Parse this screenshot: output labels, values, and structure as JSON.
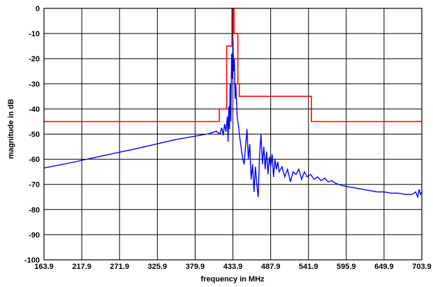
{
  "chart_data": {
    "type": "line",
    "title": "",
    "xlabel": "frequency in MHz",
    "ylabel": "magnitude in dB",
    "xlim": [
      163.9,
      703.9
    ],
    "ylim": [
      -100,
      0
    ],
    "grid": true,
    "x_ticks": [
      "163.9",
      "217.9",
      "271.9",
      "325.9",
      "379.9",
      "433.9",
      "487.9",
      "541.9",
      "595.9",
      "649.9",
      "703.9"
    ],
    "y_ticks": [
      "0",
      "-10",
      "-20",
      "-30",
      "-40",
      "-50",
      "-60",
      "-70",
      "-80",
      "-90",
      "-100"
    ],
    "series": [
      {
        "color": "#ff0000",
        "style": "step",
        "x": [
          163.9,
          414.5,
          414.5,
          425,
          425,
          432.5,
          432.5,
          435.5,
          435.5,
          441,
          441,
          443,
          443,
          449.5,
          449.5,
          469,
          469,
          479,
          479,
          487.9,
          487.9,
          546,
          546,
          703.9
        ],
        "y": [
          -45,
          -45,
          -40,
          -40,
          -15,
          -15,
          0,
          0,
          -10,
          -10,
          -30,
          -30,
          -35,
          -35,
          -35,
          -35,
          -35,
          -35,
          -35,
          -35,
          -35,
          -35,
          -45,
          -45
        ]
      },
      {
        "color": "#0000ff",
        "style": "line",
        "x": [
          163.9,
          200,
          250,
          300,
          350,
          380,
          400,
          410,
          415,
          418,
          420,
          422,
          424,
          426,
          427,
          428,
          429,
          430,
          431,
          432,
          433,
          434,
          435,
          436,
          437,
          438,
          440,
          442,
          444,
          446,
          448,
          450,
          452,
          454,
          456,
          458,
          460,
          462,
          464,
          466,
          468,
          470,
          472,
          474,
          476,
          478,
          480,
          482,
          484,
          486,
          488,
          490,
          492,
          494,
          496,
          498,
          500,
          504,
          508,
          512,
          516,
          520,
          524,
          528,
          532,
          536,
          540,
          545,
          550,
          555,
          560,
          565,
          570,
          575,
          580,
          590,
          600,
          610,
          620,
          630,
          640,
          650,
          660,
          670,
          680,
          690,
          695,
          698,
          700,
          702,
          703.9
        ],
        "y": [
          -63.5,
          -61.5,
          -58.5,
          -55.5,
          -52.3,
          -50.8,
          -49.8,
          -48.8,
          -50,
          -47.5,
          -50.5,
          -46,
          -49,
          -43,
          -53,
          -39,
          -48,
          -30,
          -45,
          -18,
          -28,
          -12,
          -25,
          -20,
          -36,
          -30,
          -43,
          -47,
          -52,
          -56,
          -60,
          -62,
          -55,
          -48,
          -60,
          -54,
          -68,
          -62,
          -73,
          -63,
          -70,
          -75,
          -58,
          -50,
          -62,
          -55,
          -64,
          -57,
          -66,
          -59,
          -63,
          -58,
          -67,
          -60,
          -64,
          -61,
          -65,
          -63,
          -67,
          -64,
          -69,
          -65,
          -66,
          -64,
          -68,
          -65,
          -67,
          -66,
          -68,
          -67,
          -68.5,
          -67.5,
          -69,
          -68.5,
          -69.5,
          -70.5,
          -71,
          -71.5,
          -72,
          -72.5,
          -73,
          -73,
          -73.5,
          -73.5,
          -74,
          -74,
          -73,
          -75,
          -72,
          -74,
          -73
        ]
      }
    ]
  }
}
